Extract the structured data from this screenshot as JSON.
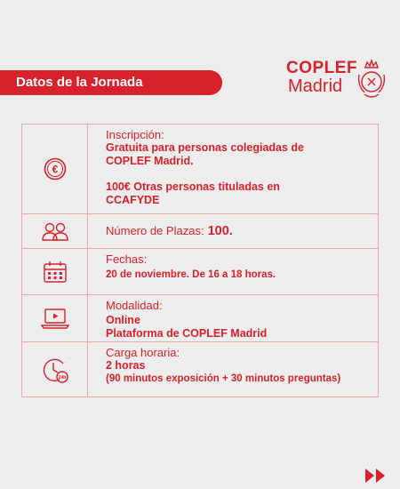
{
  "header": {
    "title": "Datos de la Jornada",
    "logo_top": "COPLEF",
    "logo_bottom": "Madrid"
  },
  "rows": {
    "inscripcion": {
      "icon": "euro-coin-icon",
      "label": "Inscripción:",
      "value1": "Gratuita para personas colegiadas de",
      "value2": "COPLEF Madrid.",
      "value3": "100€ Otras personas tituladas en",
      "value4": "CCAFYDE"
    },
    "plazas": {
      "icon": "people-icon",
      "label": "Número de Plazas:",
      "value": "100."
    },
    "fechas": {
      "icon": "calendar-icon",
      "label": "Fechas:",
      "value": "20 de noviembre. De 16 a 18 horas."
    },
    "modalidad": {
      "icon": "laptop-play-icon",
      "label": "Modalidad:",
      "value1": "Online",
      "value2": "Plataforma de COPLEF Madrid"
    },
    "carga": {
      "icon": "clock-icon",
      "label": "Carga horaria:",
      "value1": "2 horas",
      "value2": "(90 minutos exposición + 30 minutos preguntas)"
    }
  },
  "colors": {
    "accent": "#d8212b",
    "border": "#e8a7a9",
    "background": "#ededed"
  },
  "footer": {
    "icon": "double-chevron-right-icon"
  }
}
